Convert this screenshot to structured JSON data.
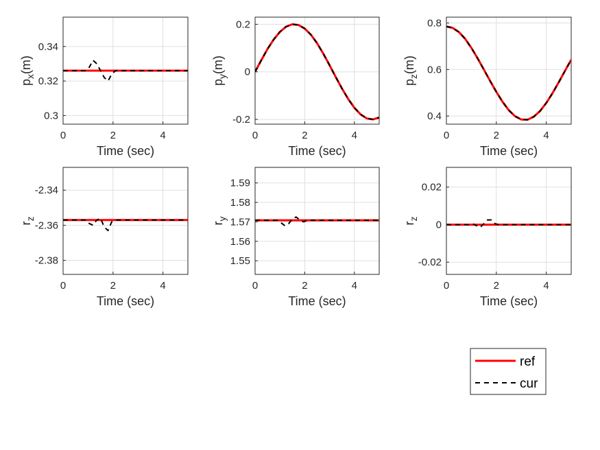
{
  "colors": {
    "ref": "#ff0000",
    "cur": "#000000",
    "grid": "#dfdfdf",
    "axis": "#262626"
  },
  "legend": {
    "placement": "bottom-right",
    "entries": [
      {
        "label": "ref",
        "style": "solid",
        "color": "#ff0000"
      },
      {
        "label": "cur",
        "style": "dashed",
        "color": "#000000"
      }
    ]
  },
  "chart_data": [
    {
      "type": "line",
      "xlabel": "Time (sec)",
      "ylabel_main": "p",
      "ylabel_sub": "x",
      "ylabel_unit": "(m)",
      "xlim": [
        0,
        5
      ],
      "ylim": [
        0.295,
        0.357
      ],
      "xticks": [
        0,
        2,
        4
      ],
      "xtick_labels": [
        "0",
        "2",
        "4"
      ],
      "yticks": [
        0.3,
        0.32,
        0.34
      ],
      "ytick_labels": [
        "0.3",
        "0.32",
        "0.34"
      ],
      "grid": true,
      "series": [
        {
          "name": "ref",
          "x": [
            0,
            5
          ],
          "y": [
            0.326,
            0.326
          ]
        },
        {
          "name": "cur",
          "x": [
            0,
            0.9,
            1.05,
            1.2,
            1.35,
            1.5,
            1.65,
            1.8,
            1.95,
            2.1,
            5
          ],
          "y": [
            0.326,
            0.326,
            0.328,
            0.332,
            0.33,
            0.326,
            0.322,
            0.32,
            0.324,
            0.326,
            0.326
          ]
        }
      ]
    },
    {
      "type": "line",
      "xlabel": "Time (sec)",
      "ylabel_main": "p",
      "ylabel_sub": "y",
      "ylabel_unit": "(m)",
      "xlim": [
        0,
        5
      ],
      "ylim": [
        -0.22,
        0.23
      ],
      "xticks": [
        0,
        2,
        4
      ],
      "xtick_labels": [
        "0",
        "2",
        "4"
      ],
      "yticks": [
        -0.2,
        0,
        0.2
      ],
      "ytick_labels": [
        "-0.2",
        "0",
        "0.2"
      ],
      "grid": true,
      "series": [
        {
          "name": "ref",
          "x": [
            0,
            0.25,
            0.5,
            0.75,
            1,
            1.25,
            1.5,
            1.75,
            2,
            2.25,
            2.5,
            2.75,
            3,
            3.25,
            3.5,
            3.75,
            4,
            4.25,
            4.5,
            4.75,
            5
          ],
          "y": [
            0,
            0.049,
            0.096,
            0.136,
            0.168,
            0.19,
            0.2,
            0.197,
            0.182,
            0.156,
            0.12,
            0.076,
            0.028,
            -0.022,
            -0.07,
            -0.114,
            -0.151,
            -0.179,
            -0.196,
            -0.2,
            -0.192
          ]
        },
        {
          "name": "cur",
          "x": [
            0,
            0.25,
            0.5,
            0.75,
            1,
            1.25,
            1.5,
            1.75,
            2,
            2.25,
            2.5,
            2.75,
            3,
            3.25,
            3.5,
            3.75,
            4,
            4.25,
            4.5,
            4.75,
            5
          ],
          "y": [
            0,
            0.049,
            0.096,
            0.136,
            0.168,
            0.19,
            0.2,
            0.197,
            0.182,
            0.156,
            0.12,
            0.076,
            0.028,
            -0.022,
            -0.07,
            -0.114,
            -0.151,
            -0.179,
            -0.196,
            -0.2,
            -0.192
          ]
        }
      ]
    },
    {
      "type": "line",
      "xlabel": "Time (sec)",
      "ylabel_main": "p",
      "ylabel_sub": "z",
      "ylabel_unit": "(m)",
      "xlim": [
        0,
        5
      ],
      "ylim": [
        0.365,
        0.825
      ],
      "xticks": [
        0,
        2,
        4
      ],
      "xtick_labels": [
        "0",
        "2",
        "4"
      ],
      "yticks": [
        0.4,
        0.6,
        0.8
      ],
      "ytick_labels": [
        "0.4",
        "0.6",
        "0.8"
      ],
      "grid": true,
      "series": [
        {
          "name": "ref",
          "x": [
            0,
            0.25,
            0.5,
            0.75,
            1,
            1.25,
            1.5,
            1.75,
            2,
            2.25,
            2.5,
            2.75,
            3,
            3.25,
            3.5,
            3.75,
            4,
            4.25,
            4.5,
            4.75,
            5
          ],
          "y": [
            0.785,
            0.779,
            0.761,
            0.732,
            0.693,
            0.648,
            0.6,
            0.551,
            0.504,
            0.461,
            0.425,
            0.399,
            0.385,
            0.384,
            0.397,
            0.421,
            0.456,
            0.498,
            0.545,
            0.594,
            0.642
          ]
        },
        {
          "name": "cur",
          "x": [
            0,
            0.25,
            0.5,
            0.75,
            1,
            1.25,
            1.5,
            1.75,
            2,
            2.25,
            2.5,
            2.75,
            3,
            3.25,
            3.5,
            3.75,
            4,
            4.25,
            4.5,
            4.75,
            5
          ],
          "y": [
            0.785,
            0.779,
            0.761,
            0.732,
            0.693,
            0.648,
            0.6,
            0.551,
            0.504,
            0.461,
            0.425,
            0.399,
            0.385,
            0.384,
            0.397,
            0.421,
            0.456,
            0.498,
            0.545,
            0.594,
            0.642
          ]
        }
      ]
    },
    {
      "type": "line",
      "xlabel": "Time (sec)",
      "ylabel_main": "r",
      "ylabel_sub": "z",
      "ylabel_unit": "",
      "xlim": [
        0,
        5
      ],
      "ylim": [
        -2.388,
        -2.327
      ],
      "xticks": [
        0,
        2,
        4
      ],
      "xtick_labels": [
        "0",
        "2",
        "4"
      ],
      "yticks": [
        -2.38,
        -2.36,
        -2.34
      ],
      "ytick_labels": [
        "-2.38",
        "-2.36",
        "-2.34"
      ],
      "grid": true,
      "series": [
        {
          "name": "ref",
          "x": [
            0,
            5
          ],
          "y": [
            -2.357,
            -2.357
          ]
        },
        {
          "name": "cur",
          "x": [
            0,
            0.9,
            1.05,
            1.2,
            1.35,
            1.5,
            1.65,
            1.8,
            1.95,
            2.1,
            5
          ],
          "y": [
            -2.357,
            -2.357,
            -2.359,
            -2.36,
            -2.357,
            -2.356,
            -2.361,
            -2.363,
            -2.358,
            -2.357,
            -2.357
          ]
        }
      ]
    },
    {
      "type": "line",
      "xlabel": "Time (sec)",
      "ylabel_main": "r",
      "ylabel_sub": "y",
      "ylabel_unit": "",
      "xlim": [
        0,
        5
      ],
      "ylim": [
        1.543,
        1.598
      ],
      "xticks": [
        0,
        2,
        4
      ],
      "xtick_labels": [
        "0",
        "2",
        "4"
      ],
      "yticks": [
        1.55,
        1.56,
        1.57,
        1.58,
        1.59
      ],
      "ytick_labels": [
        "1.55",
        "1.56",
        "1.57",
        "1.58",
        "1.59"
      ],
      "grid": true,
      "series": [
        {
          "name": "ref",
          "x": [
            0,
            5
          ],
          "y": [
            1.5708,
            1.5708
          ]
        },
        {
          "name": "cur",
          "x": [
            0,
            0.9,
            1.05,
            1.2,
            1.35,
            1.5,
            1.65,
            1.8,
            1.95,
            2.1,
            5
          ],
          "y": [
            1.5708,
            1.5708,
            1.5695,
            1.568,
            1.569,
            1.5715,
            1.5725,
            1.571,
            1.57,
            1.5708,
            1.5708
          ]
        }
      ]
    },
    {
      "type": "line",
      "xlabel": "Time (sec)",
      "ylabel_main": "r",
      "ylabel_sub": "z",
      "ylabel_unit": "",
      "xlim": [
        0,
        5
      ],
      "ylim": [
        -0.0265,
        0.0305
      ],
      "xticks": [
        0,
        2,
        4
      ],
      "xtick_labels": [
        "0",
        "2",
        "4"
      ],
      "yticks": [
        -0.02,
        0,
        0.02
      ],
      "ytick_labels": [
        "-0.02",
        "0",
        "0.02"
      ],
      "grid": true,
      "series": [
        {
          "name": "ref",
          "x": [
            0,
            5
          ],
          "y": [
            0,
            0
          ]
        },
        {
          "name": "cur",
          "x": [
            0,
            0.9,
            1.05,
            1.2,
            1.35,
            1.5,
            1.65,
            1.8,
            1.95,
            2.1,
            5
          ],
          "y": [
            0,
            0,
            0.0005,
            -0.0005,
            -0.0015,
            0.0005,
            0.0025,
            0.0025,
            0.0005,
            0,
            0
          ]
        }
      ]
    }
  ]
}
